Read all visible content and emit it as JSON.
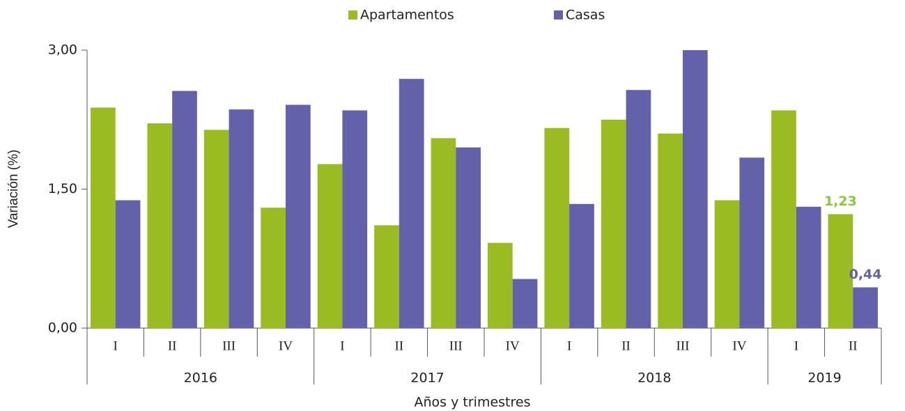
{
  "chart_data": {
    "type": "bar",
    "y_label": "Variación (%)",
    "x_label": "Años y trimestres",
    "groups": [
      {
        "label": "2016",
        "categories": [
          "I",
          "II",
          "III",
          "IV"
        ]
      },
      {
        "label": "2017",
        "categories": [
          "I",
          "II",
          "III",
          "IV"
        ]
      },
      {
        "label": "2018",
        "categories": [
          "I",
          "II",
          "III",
          "IV"
        ]
      },
      {
        "label": "2019",
        "categories": [
          "I",
          "II"
        ]
      }
    ],
    "series": [
      {
        "name": "Apartamentos",
        "color": "#9bbb23",
        "values": [
          2.38,
          2.21,
          2.14,
          1.3,
          1.77,
          1.11,
          2.05,
          0.92,
          2.16,
          2.25,
          2.1,
          1.38,
          2.35,
          1.23
        ],
        "value_labels": [
          null,
          null,
          null,
          null,
          null,
          null,
          null,
          null,
          null,
          null,
          null,
          null,
          null,
          "1,23"
        ],
        "label_color": "#8cc63f"
      },
      {
        "name": "Casas",
        "color": "#6361a9",
        "values": [
          1.38,
          2.56,
          2.36,
          2.41,
          2.35,
          2.69,
          1.95,
          0.53,
          1.34,
          2.57,
          3.0,
          1.84,
          1.31,
          0.44
        ],
        "value_labels": [
          null,
          null,
          null,
          null,
          null,
          null,
          null,
          null,
          null,
          null,
          null,
          null,
          null,
          "0,44"
        ],
        "label_color": "#6361a9"
      }
    ],
    "ylim": [
      0,
      3
    ],
    "yticks": [
      {
        "value": 0,
        "label": "0,00"
      },
      {
        "value": 1.5,
        "label": "1,50"
      },
      {
        "value": 3,
        "label": "3,00"
      }
    ],
    "legend": "top"
  }
}
